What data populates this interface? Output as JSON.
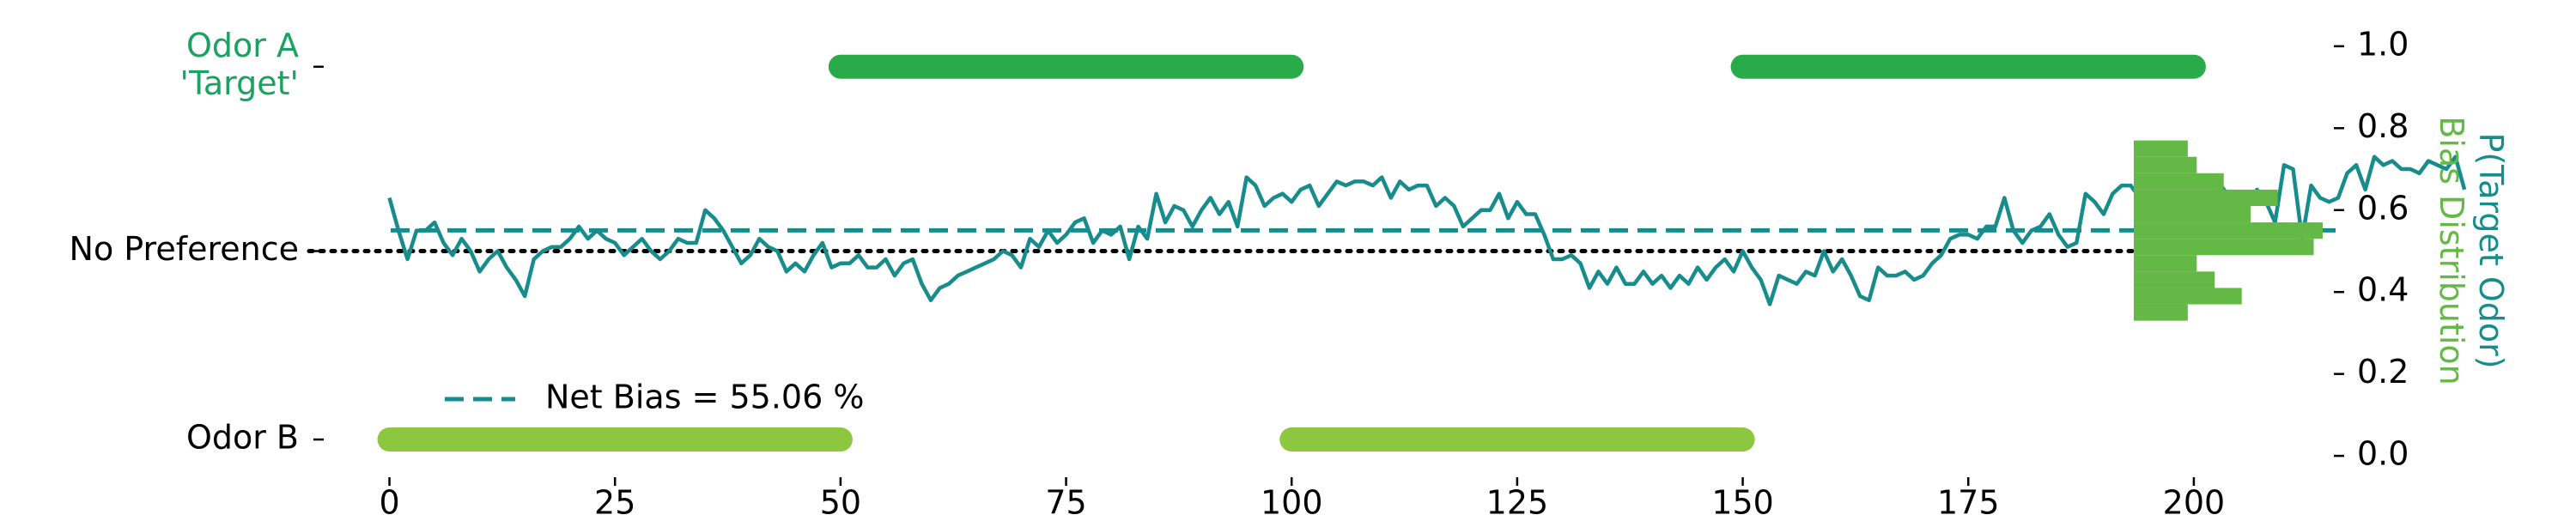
{
  "chart_data": {
    "type": "line",
    "xlim": [
      -7,
      210
    ],
    "ylim": [
      -0.05,
      1.05
    ],
    "x_ticks": [
      0,
      25,
      50,
      75,
      100,
      125,
      150,
      175,
      200
    ],
    "right_ticks": [
      {
        "value": 0.0,
        "label": "0.0"
      },
      {
        "value": 0.2,
        "label": "0.2"
      },
      {
        "value": 0.4,
        "label": "0.4"
      },
      {
        "value": 0.6,
        "label": "0.6"
      },
      {
        "value": 0.8,
        "label": "0.8"
      },
      {
        "value": 1.0,
        "label": "1.0"
      }
    ],
    "left_ticks": [
      {
        "value": 0.95,
        "lines": [
          "Odor A",
          "'Target'"
        ],
        "color": "#1aa260"
      },
      {
        "value": 0.5,
        "lines": [
          "No Preference"
        ],
        "color": "#000000"
      },
      {
        "value": 0.04,
        "lines": [
          "Odor B"
        ],
        "color": "#000000"
      }
    ],
    "right_axis_label": {
      "lines": [
        "P(Target Odor)",
        "Bias Distribution"
      ],
      "colors": [
        "#178c8c",
        "#64b946"
      ]
    },
    "legend": {
      "label": "Net Bias = 55.06 %",
      "position": "lower-left"
    },
    "net_bias": 0.5506,
    "colors": {
      "odor_a": "#2aab4a",
      "odor_b": "#8dc63f",
      "trace": "#178c8c",
      "hist": "#64b946",
      "reference": "#000000"
    },
    "odor_a_blocks": [
      [
        50,
        100
      ],
      [
        150,
        200
      ]
    ],
    "odor_a_y": 0.95,
    "odor_b_blocks": [
      [
        0,
        50
      ],
      [
        100,
        150
      ]
    ],
    "odor_b_y": 0.04,
    "reference_y": 0.5,
    "series": [
      {
        "x_start": 0,
        "x_step": 1,
        "values": [
          0.63,
          0.55,
          0.48,
          0.55,
          0.55,
          0.57,
          0.52,
          0.49,
          0.53,
          0.5,
          0.45,
          0.48,
          0.5,
          0.46,
          0.43,
          0.39,
          0.48,
          0.5,
          0.51,
          0.51,
          0.53,
          0.56,
          0.53,
          0.55,
          0.53,
          0.52,
          0.49,
          0.51,
          0.53,
          0.5,
          0.48,
          0.5,
          0.53,
          0.52,
          0.52,
          0.6,
          0.58,
          0.55,
          0.51,
          0.47,
          0.49,
          0.53,
          0.51,
          0.5,
          0.45,
          0.47,
          0.45,
          0.49,
          0.52,
          0.46,
          0.47,
          0.47,
          0.49,
          0.46,
          0.46,
          0.48,
          0.44,
          0.47,
          0.48,
          0.42,
          0.38,
          0.41,
          0.42,
          0.44,
          0.45,
          0.46,
          0.47,
          0.48,
          0.5,
          0.49,
          0.46,
          0.53,
          0.51,
          0.55,
          0.52,
          0.54,
          0.57,
          0.58,
          0.52,
          0.55,
          0.54,
          0.56,
          0.48,
          0.56,
          0.53,
          0.64,
          0.57,
          0.61,
          0.6,
          0.56,
          0.6,
          0.63,
          0.59,
          0.62,
          0.56,
          0.68,
          0.66,
          0.61,
          0.63,
          0.64,
          0.62,
          0.65,
          0.66,
          0.61,
          0.64,
          0.67,
          0.66,
          0.67,
          0.67,
          0.66,
          0.68,
          0.63,
          0.67,
          0.65,
          0.66,
          0.66,
          0.61,
          0.63,
          0.61,
          0.56,
          0.58,
          0.6,
          0.6,
          0.64,
          0.58,
          0.62,
          0.59,
          0.59,
          0.54,
          0.48,
          0.48,
          0.49,
          0.47,
          0.41,
          0.45,
          0.42,
          0.46,
          0.42,
          0.42,
          0.45,
          0.42,
          0.44,
          0.41,
          0.44,
          0.42,
          0.46,
          0.43,
          0.46,
          0.48,
          0.45,
          0.5,
          0.46,
          0.43,
          0.37,
          0.44,
          0.43,
          0.42,
          0.45,
          0.44,
          0.5,
          0.45,
          0.48,
          0.44,
          0.39,
          0.38,
          0.46,
          0.44,
          0.44,
          0.45,
          0.43,
          0.44,
          0.47,
          0.49,
          0.53,
          0.54,
          0.54,
          0.53,
          0.56,
          0.56,
          0.63,
          0.55,
          0.52,
          0.55,
          0.56,
          0.59,
          0.54,
          0.51,
          0.52,
          0.64,
          0.62,
          0.59,
          0.64,
          0.66,
          0.66,
          0.63,
          0.61,
          0.63,
          0.6,
          0.64,
          0.62,
          0.64,
          0.6,
          0.59,
          0.66,
          0.63,
          0.58,
          0.61,
          0.65,
          0.62,
          0.57,
          0.71,
          0.7,
          0.53,
          0.66,
          0.63,
          0.62,
          0.63,
          0.69,
          0.71,
          0.65,
          0.73,
          0.71,
          0.72,
          0.7,
          0.7,
          0.69,
          0.72,
          0.71,
          0.7,
          0.73,
          0.65
        ]
      }
    ],
    "histogram": {
      "bins": [
        {
          "y0": 0.33,
          "y1": 0.37,
          "count": 6
        },
        {
          "y0": 0.37,
          "y1": 0.41,
          "count": 12
        },
        {
          "y0": 0.41,
          "y1": 0.45,
          "count": 9
        },
        {
          "y0": 0.45,
          "y1": 0.49,
          "count": 7
        },
        {
          "y0": 0.49,
          "y1": 0.53,
          "count": 20
        },
        {
          "y0": 0.53,
          "y1": 0.57,
          "count": 21
        },
        {
          "y0": 0.57,
          "y1": 0.61,
          "count": 13
        },
        {
          "y0": 0.61,
          "y1": 0.65,
          "count": 16
        },
        {
          "y0": 0.65,
          "y1": 0.69,
          "count": 10
        },
        {
          "y0": 0.69,
          "y1": 0.73,
          "count": 7
        },
        {
          "y0": 0.73,
          "y1": 0.77,
          "count": 6
        }
      ]
    }
  }
}
